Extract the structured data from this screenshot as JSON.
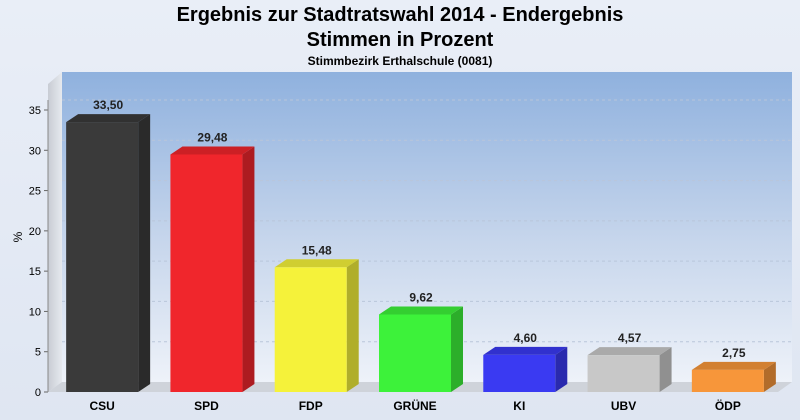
{
  "chart_data": {
    "type": "bar",
    "title": "Ergebnis zur Stadtratswahl 2014 - Endergebnis",
    "subtitle": "Stimmen in Prozent",
    "subtitle2": "Stimmbezirk Erthalschule (0081)",
    "ylabel": "%",
    "xlabel": "",
    "ylim": [
      0,
      35
    ],
    "yticks": [
      0,
      5,
      10,
      15,
      20,
      25,
      30,
      35
    ],
    "grid": true,
    "categories": [
      "CSU",
      "SPD",
      "FDP",
      "GRÜNE",
      "KI",
      "UBV",
      "ÖDP"
    ],
    "values": [
      33.5,
      29.48,
      15.48,
      9.62,
      4.6,
      4.57,
      2.75
    ],
    "value_labels": [
      "33,50",
      "29,48",
      "15,48",
      "9,62",
      "4,60",
      "4,57",
      "2,75"
    ],
    "colors": [
      "#3a3a3a",
      "#f0262c",
      "#f5f23a",
      "#3df23a",
      "#3a3af2",
      "#c8c8c8",
      "#f7963a"
    ]
  }
}
